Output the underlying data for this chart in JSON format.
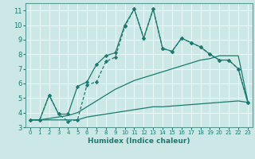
{
  "xlabel": "Humidex (Indice chaleur)",
  "xlim": [
    -0.5,
    23.5
  ],
  "ylim": [
    3,
    11.5
  ],
  "yticks": [
    3,
    4,
    5,
    6,
    7,
    8,
    9,
    10,
    11
  ],
  "xticks": [
    0,
    1,
    2,
    3,
    4,
    5,
    6,
    7,
    8,
    9,
    10,
    11,
    12,
    13,
    14,
    15,
    16,
    17,
    18,
    19,
    20,
    21,
    22,
    23
  ],
  "bg_color": "#cce8e6",
  "grid_color": "#e8f8f7",
  "line_color": "#1a7a6e",
  "line1_x": [
    0,
    1,
    2,
    3,
    4,
    5,
    6,
    7,
    8,
    9,
    10,
    11,
    12,
    13,
    14,
    15,
    16,
    17,
    18,
    19,
    20,
    21,
    22,
    23
  ],
  "line1_y": [
    3.5,
    3.5,
    5.2,
    3.9,
    3.9,
    5.8,
    6.1,
    7.3,
    7.9,
    8.1,
    10.0,
    11.1,
    9.1,
    11.1,
    8.4,
    8.2,
    9.1,
    8.8,
    8.5,
    8.0,
    7.6,
    7.6,
    7.0,
    4.7
  ],
  "line2_x": [
    0,
    1,
    2,
    3,
    4,
    5,
    6,
    7,
    8,
    9,
    10,
    11,
    12,
    13,
    14,
    15,
    16,
    17,
    18,
    19,
    20,
    21,
    22,
    23
  ],
  "line2_y": [
    3.5,
    3.5,
    5.2,
    3.9,
    3.4,
    3.5,
    5.9,
    6.1,
    7.5,
    7.8,
    9.9,
    11.1,
    9.1,
    11.1,
    8.4,
    8.2,
    9.1,
    8.8,
    8.5,
    8.0,
    7.6,
    7.6,
    7.0,
    4.7
  ],
  "line3_x": [
    0,
    1,
    2,
    3,
    4,
    5,
    6,
    7,
    8,
    9,
    10,
    11,
    12,
    13,
    14,
    15,
    16,
    17,
    18,
    19,
    20,
    21,
    22,
    23
  ],
  "line3_y": [
    3.5,
    3.5,
    3.6,
    3.7,
    3.8,
    4.0,
    4.4,
    4.8,
    5.2,
    5.6,
    5.9,
    6.2,
    6.4,
    6.6,
    6.8,
    7.0,
    7.2,
    7.4,
    7.6,
    7.7,
    7.9,
    7.9,
    7.9,
    4.8
  ],
  "line4_x": [
    0,
    1,
    2,
    3,
    4,
    5,
    6,
    7,
    8,
    9,
    10,
    11,
    12,
    13,
    14,
    15,
    16,
    17,
    18,
    19,
    20,
    21,
    22,
    23
  ],
  "line4_y": [
    3.5,
    3.5,
    3.5,
    3.5,
    3.5,
    3.5,
    3.7,
    3.8,
    3.9,
    4.0,
    4.1,
    4.2,
    4.3,
    4.4,
    4.4,
    4.45,
    4.5,
    4.55,
    4.6,
    4.65,
    4.7,
    4.75,
    4.8,
    4.7
  ]
}
